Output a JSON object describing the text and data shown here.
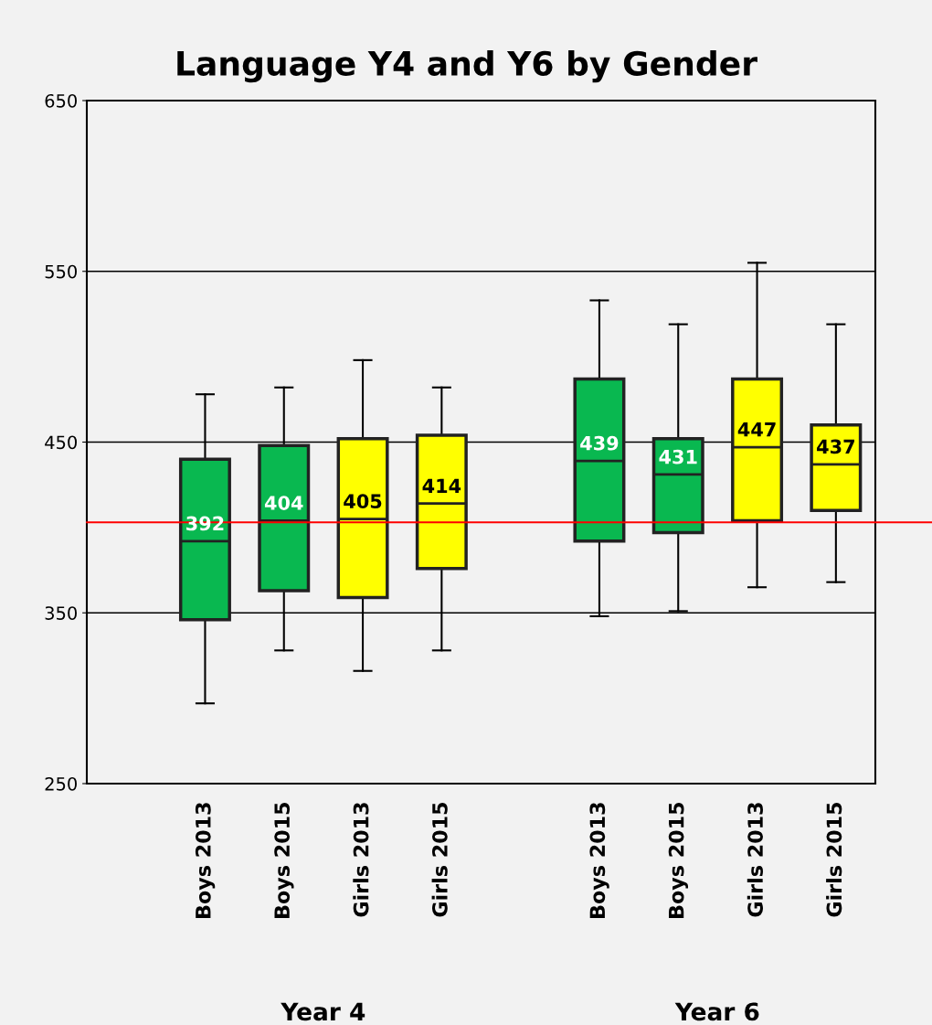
{
  "chart_data": {
    "type": "box",
    "title": "Language Y4 and Y6 by Gender",
    "categories": [
      "Boys 2013",
      "Boys 2015",
      "Girls 2013",
      "Girls 2015",
      null,
      "Boys 2013",
      "Boys 2015",
      "Girls 2013",
      "Girls 2015"
    ],
    "colors": [
      "#09b850",
      "#09b850",
      "#ffff00",
      "#ffff00",
      null,
      "#09b850",
      "#09b850",
      "#ffff00",
      "#ffff00"
    ],
    "boxes": [
      {
        "low": 297,
        "q1": 346,
        "median": 392,
        "q3": 440,
        "high": 478
      },
      {
        "low": 328,
        "q1": 363,
        "median": 404,
        "q3": 448,
        "high": 482
      },
      {
        "low": 316,
        "q1": 359,
        "median": 405,
        "q3": 452,
        "high": 498
      },
      {
        "low": 328,
        "q1": 376,
        "median": 414,
        "q3": 454,
        "high": 482
      },
      null,
      {
        "low": 348,
        "q1": 392,
        "median": 439,
        "q3": 487,
        "high": 533
      },
      {
        "low": 351,
        "q1": 397,
        "median": 431,
        "q3": 452,
        "high": 519
      },
      {
        "low": 365,
        "q1": 404,
        "median": 447,
        "q3": 487,
        "high": 555
      },
      {
        "low": 368,
        "q1": 410,
        "median": 437,
        "q3": 460,
        "high": 519
      }
    ],
    "annotations": [
      "Year 4",
      "Year 6"
    ],
    "value_labels": [
      "392",
      "404",
      "405",
      "414",
      null,
      "439",
      "431",
      "447",
      "437"
    ],
    "ylim": [
      250,
      650
    ],
    "yticks": [
      250,
      350,
      450,
      550,
      650
    ],
    "grid": "y",
    "ref_lines": [
      {
        "axis": "y",
        "value": 403,
        "color": "#ff0000"
      }
    ]
  }
}
